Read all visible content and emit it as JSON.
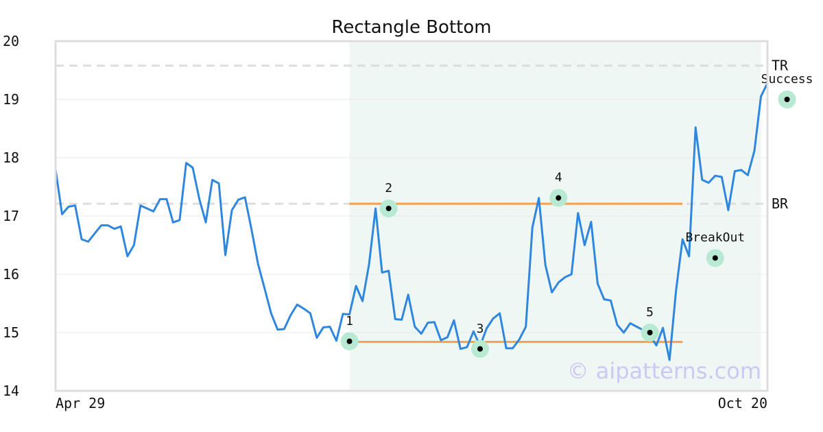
{
  "chart_data": {
    "type": "line",
    "title": "Rectangle Bottom",
    "xlabel": "",
    "ylabel": "",
    "ylim": [
      14,
      20
    ],
    "yticks": [
      14,
      15,
      16,
      17,
      18,
      19,
      20
    ],
    "x_tick_labels": [
      "Apr 29",
      "Oct 20"
    ],
    "grid": true,
    "watermark": "© aipatterns.com",
    "colors": {
      "line": "#2e86de",
      "level": "#f5a04a",
      "ref": "#dddddd",
      "highlight": "#eef7f3",
      "marker_ring": "#b8ead3",
      "marker_dot": "#000000"
    },
    "series": [
      {
        "values": [
          17.8,
          17.03,
          17.16,
          17.18,
          16.6,
          16.56,
          16.7,
          16.84,
          16.84,
          16.78,
          16.82,
          16.31,
          16.5,
          17.18,
          17.13,
          17.08,
          17.29,
          17.29,
          16.89,
          16.93,
          17.91,
          17.83,
          17.3,
          16.89,
          17.62,
          17.56,
          16.33,
          17.1,
          17.28,
          17.32,
          16.77,
          16.18,
          15.76,
          15.33,
          15.05,
          15.06,
          15.3,
          15.48,
          15.41,
          15.33,
          14.91,
          15.09,
          15.1,
          14.86,
          15.32,
          15.31,
          15.8,
          15.54,
          16.17,
          17.13,
          16.03,
          16.06,
          15.23,
          15.22,
          15.65,
          15.1,
          14.98,
          15.17,
          15.18,
          14.87,
          14.92,
          15.21,
          14.72,
          14.75,
          15.02,
          14.77,
          15.07,
          15.24,
          15.33,
          14.73,
          14.73,
          14.88,
          15.1,
          16.8,
          17.31,
          16.16,
          15.69,
          15.86,
          15.95,
          16.0,
          17.05,
          16.5,
          16.9,
          15.84,
          15.57,
          15.55,
          15.13,
          15.0,
          15.16,
          15.1,
          15.04,
          14.95,
          14.78,
          15.08,
          14.53,
          15.72,
          16.6,
          16.31,
          18.52,
          17.62,
          17.57,
          17.69,
          17.67,
          17.1,
          17.77,
          17.79,
          17.7,
          18.12,
          19.05,
          19.28
        ]
      }
    ],
    "highlight_range": [
      45,
      108
    ],
    "reference_lines": [
      {
        "label": "TR",
        "value": 19.58
      },
      {
        "label": "BR",
        "value": 17.21
      }
    ],
    "levels": [
      {
        "value": 17.21,
        "from": 45,
        "to": 96
      },
      {
        "value": 14.84,
        "from": 45,
        "to": 96
      }
    ],
    "annotations": [
      {
        "label": "1",
        "x": 45,
        "y": 14.85
      },
      {
        "label": "2",
        "x": 51,
        "y": 17.13
      },
      {
        "label": "3",
        "x": 65,
        "y": 14.72
      },
      {
        "label": "4",
        "x": 77,
        "y": 17.31
      },
      {
        "label": "5",
        "x": 91,
        "y": 15.0
      },
      {
        "label": "BreakOut",
        "x": 101,
        "y": 16.28
      },
      {
        "label": "Success",
        "x": 112,
        "y": 19.0
      }
    ]
  }
}
